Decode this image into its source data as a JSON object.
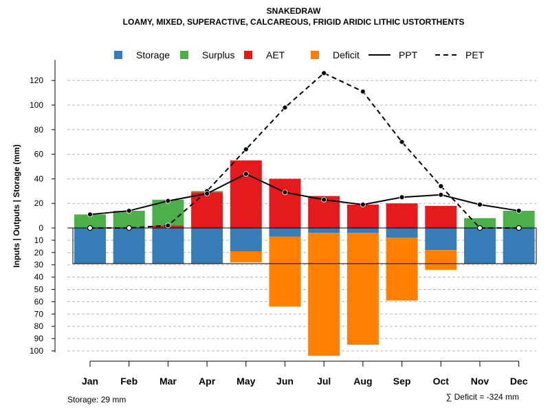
{
  "chart_data": {
    "type": "bar",
    "title": "SNAKEDRAW",
    "subtitle": "LOAMY, MIXED, SUPERACTIVE, CALCAREOUS, FRIGID ARIDIC LITHIC USTORTHENTS",
    "ylabel": "Inputs | Outputs | Storage    (mm)",
    "categories": [
      "Jan",
      "Feb",
      "Mar",
      "Apr",
      "May",
      "Jun",
      "Jul",
      "Aug",
      "Sep",
      "Oct",
      "Nov",
      "Dec"
    ],
    "y_upper_ticks": [
      0,
      20,
      40,
      60,
      80,
      100,
      120
    ],
    "y_lower_ticks": [
      10,
      20,
      30,
      40,
      50,
      60,
      70,
      80,
      90,
      100
    ],
    "ylim_upper": [
      0,
      130
    ],
    "ylim_lower": [
      0,
      105
    ],
    "grid": true,
    "legend": {
      "position": "top",
      "entries": [
        {
          "label": "Storage",
          "kind": "box",
          "color": "#377EB8"
        },
        {
          "label": "Surplus",
          "kind": "box",
          "color": "#4DAF4A"
        },
        {
          "label": "AET",
          "kind": "box",
          "color": "#E41A1C"
        },
        {
          "label": "Deficit",
          "kind": "box",
          "color": "#FF7F00"
        },
        {
          "label": "PPT",
          "kind": "solid",
          "color": "#000000"
        },
        {
          "label": "PET",
          "kind": "dashed",
          "color": "#000000"
        }
      ]
    },
    "series": [
      {
        "name": "AET",
        "color": "#E41A1C",
        "values": [
          0,
          0,
          2,
          29,
          55,
          40,
          26,
          19,
          20,
          18,
          0,
          0
        ]
      },
      {
        "name": "Surplus",
        "color": "#4DAF4A",
        "values": [
          11,
          14,
          21,
          1,
          0,
          0,
          0,
          0,
          0,
          0,
          8,
          14
        ]
      },
      {
        "name": "Storage",
        "color": "#377EB8",
        "values": [
          29,
          29,
          29,
          29,
          19,
          7,
          4,
          4,
          8,
          18,
          29,
          29
        ]
      },
      {
        "name": "Deficit",
        "color": "#FF7F00",
        "values": [
          0,
          0,
          0,
          0,
          9,
          57,
          100,
          91,
          51,
          16,
          0,
          0
        ]
      },
      {
        "name": "PPT",
        "color": "#000000",
        "values": [
          11,
          14,
          22,
          28,
          44,
          29,
          23,
          19,
          25,
          27,
          19,
          14
        ]
      },
      {
        "name": "PET",
        "color": "#000000",
        "values": [
          0,
          0,
          2,
          30,
          64,
          98,
          126,
          111,
          70,
          34,
          0,
          0
        ]
      }
    ],
    "storage_capacity": 29,
    "footer_left": "Storage: 29 mm",
    "footer_right": "∑ Deficit = -324 mm"
  }
}
